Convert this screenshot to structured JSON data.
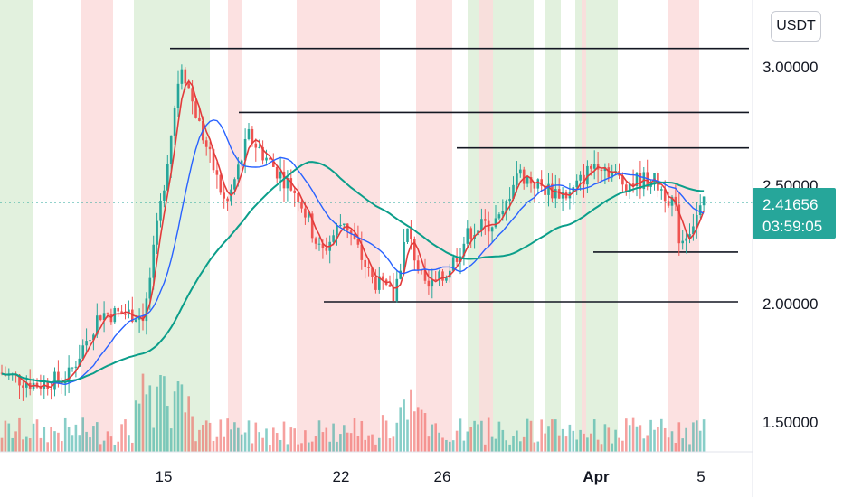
{
  "chart_data": {
    "type": "candlestick",
    "title": "",
    "currency": "USDT",
    "y_ticks": [
      "3.00000",
      "2.50000",
      "2.00000",
      "1.50000"
    ],
    "y_tick_values": [
      3.0,
      2.5,
      2.0,
      1.5
    ],
    "ylim": [
      1.37,
      3.33
    ],
    "x_ticks": [
      {
        "label": "15",
        "bold": false
      },
      {
        "label": "22",
        "bold": false
      },
      {
        "label": "26",
        "bold": false
      },
      {
        "label": "Apr",
        "bold": true
      },
      {
        "label": "5",
        "bold": false
      }
    ],
    "last_price": "2.41656",
    "countdown": "03:59:05",
    "last_price_value": 2.41656,
    "horizontal_levels": [
      3.07,
      2.8,
      2.65,
      2.21,
      2.0
    ],
    "series": [
      {
        "name": "",
        "color": "#e23b3b"
      },
      {
        "name": "",
        "color": "#2962ff"
      },
      {
        "name": "",
        "color": "#0b9e8a"
      }
    ],
    "colors": {
      "up": "#26a69a",
      "down": "#ef5350",
      "up_zone": "#dff0da",
      "down_zone": "#fcdcdc",
      "price_badge": "#26a69a"
    }
  }
}
